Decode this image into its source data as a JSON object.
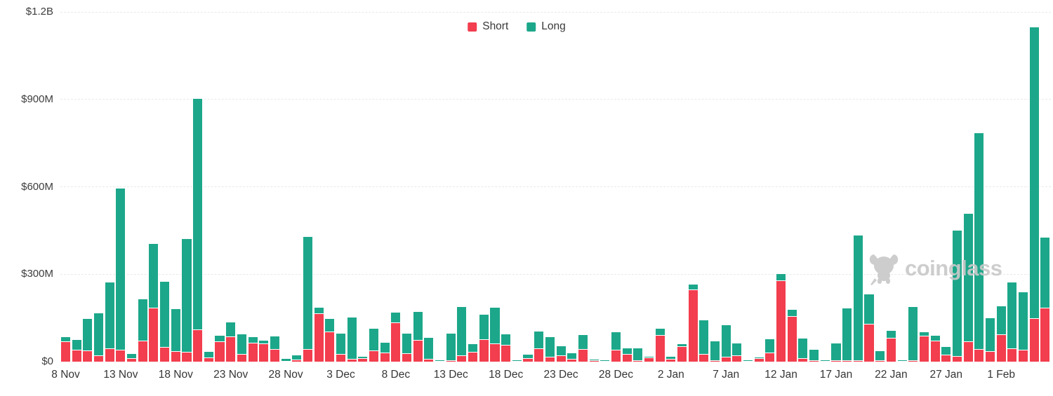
{
  "legend": {
    "short_label": "Short",
    "long_label": "Long"
  },
  "colors": {
    "short": "#F23E4E",
    "long": "#1CA78A",
    "grid": "#e9e9e9",
    "axis_text": "#3d3d3d",
    "watermark_gray": "#c9c9c9",
    "background": "#ffffff"
  },
  "watermark": {
    "text": "coinglass",
    "icon": "coinglass-bull-icon"
  },
  "y_axis": {
    "tick_labels": [
      "$1.2B",
      "$900M",
      "$600M",
      "$300M",
      "$0"
    ],
    "tick_values_millions": [
      1200,
      900,
      600,
      300,
      0
    ]
  },
  "x_axis": {
    "tick_labels": [
      "8 Nov",
      "13 Nov",
      "18 Nov",
      "23 Nov",
      "28 Nov",
      "3 Dec",
      "8 Dec",
      "13 Dec",
      "18 Dec",
      "23 Dec",
      "28 Dec",
      "2 Jan",
      "7 Jan",
      "12 Jan",
      "17 Jan",
      "22 Jan",
      "27 Jan",
      "1 Feb"
    ],
    "tick_every_n_bars": 5
  },
  "chart_data": {
    "type": "bar",
    "stacked": true,
    "unit": "USD millions",
    "ylim": [
      0,
      1200
    ],
    "grid": "horizontal-dashed",
    "legend_position": "top-center",
    "categories": [
      "8 Nov",
      "9 Nov",
      "10 Nov",
      "11 Nov",
      "12 Nov",
      "13 Nov",
      "14 Nov",
      "15 Nov",
      "16 Nov",
      "17 Nov",
      "18 Nov",
      "19 Nov",
      "20 Nov",
      "21 Nov",
      "22 Nov",
      "23 Nov",
      "24 Nov",
      "25 Nov",
      "26 Nov",
      "27 Nov",
      "28 Nov",
      "29 Nov",
      "30 Nov",
      "1 Dec",
      "2 Dec",
      "3 Dec",
      "4 Dec",
      "5 Dec",
      "6 Dec",
      "7 Dec",
      "8 Dec",
      "9 Dec",
      "10 Dec",
      "11 Dec",
      "12 Dec",
      "13 Dec",
      "14 Dec",
      "15 Dec",
      "16 Dec",
      "17 Dec",
      "18 Dec",
      "19 Dec",
      "20 Dec",
      "21 Dec",
      "22 Dec",
      "23 Dec",
      "24 Dec",
      "25 Dec",
      "26 Dec",
      "27 Dec",
      "28 Dec",
      "29 Dec",
      "30 Dec",
      "31 Dec",
      "1 Jan",
      "2 Jan",
      "3 Jan",
      "4 Jan",
      "5 Jan",
      "6 Jan",
      "7 Jan",
      "8 Jan",
      "9 Jan",
      "10 Jan",
      "11 Jan",
      "12 Jan",
      "13 Jan",
      "14 Jan",
      "15 Jan",
      "16 Jan",
      "17 Jan",
      "18 Jan",
      "19 Jan",
      "20 Jan",
      "21 Jan",
      "22 Jan",
      "23 Jan",
      "24 Jan",
      "25 Jan",
      "26 Jan",
      "27 Jan",
      "28 Jan",
      "29 Jan",
      "30 Jan",
      "31 Jan",
      "1 Feb",
      "2 Feb",
      "3 Feb",
      "4 Feb",
      "5 Feb"
    ],
    "series": [
      {
        "name": "Short",
        "color": "#F23E4E",
        "values": [
          70,
          41,
          39,
          22,
          46,
          41,
          12,
          73,
          185,
          51,
          36,
          34,
          110,
          14,
          70,
          86,
          27,
          65,
          62,
          44,
          3,
          8,
          44,
          166,
          104,
          27,
          10,
          12,
          39,
          31,
          135,
          29,
          75,
          10,
          2,
          5,
          22,
          34,
          77,
          63,
          58,
          2,
          12,
          46,
          17,
          22,
          10,
          43,
          4,
          2,
          41,
          27,
          5,
          15,
          92,
          10,
          53,
          248,
          26,
          5,
          17,
          22,
          1,
          12,
          32,
          280,
          157,
          12,
          4,
          1,
          4,
          6,
          5,
          130,
          4,
          82,
          1,
          6,
          88,
          71,
          24,
          19,
          70,
          44,
          36,
          94,
          46,
          41,
          150,
          185
        ]
      },
      {
        "name": "Long",
        "color": "#1CA78A",
        "values": [
          15,
          34,
          108,
          144,
          226,
          554,
          15,
          142,
          220,
          224,
          144,
          387,
          791,
          19,
          18,
          49,
          67,
          19,
          10,
          43,
          6,
          14,
          385,
          19,
          43,
          69,
          142,
          4,
          74,
          34,
          34,
          67,
          96,
          72,
          3,
          91,
          166,
          26,
          84,
          122,
          36,
          2,
          13,
          58,
          67,
          31,
          19,
          49,
          3,
          2,
          60,
          18,
          41,
          2,
          21,
          7,
          7,
          17,
          116,
          65,
          108,
          41,
          2,
          2,
          45,
          21,
          21,
          68,
          37,
          1,
          59,
          176,
          429,
          102,
          33,
          24,
          1,
          182,
          14,
          17,
          27,
          431,
          438,
          739,
          114,
          96,
          225,
          198,
          997,
          240
        ]
      }
    ]
  }
}
